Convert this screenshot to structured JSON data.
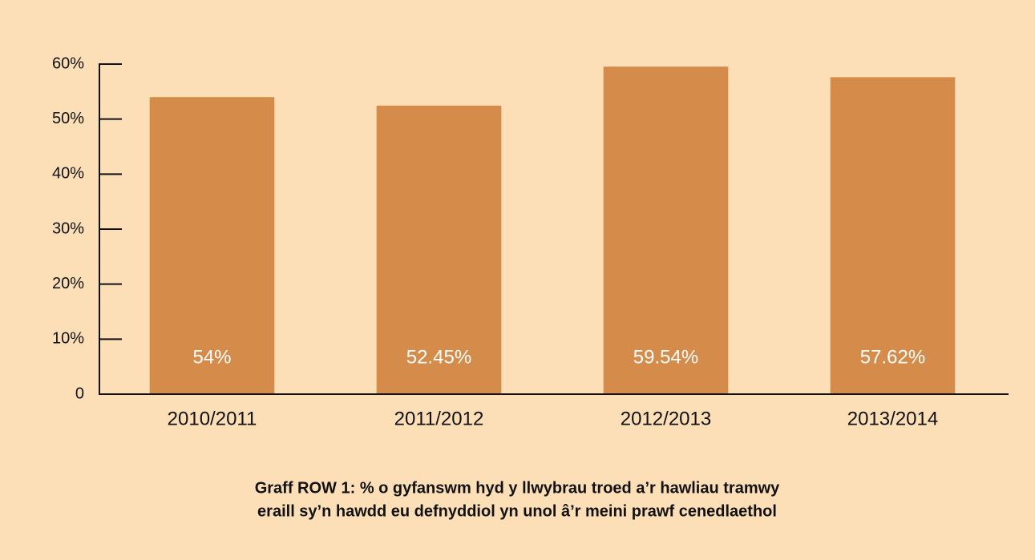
{
  "chart_data": {
    "type": "bar",
    "title": [
      "Graff ROW 1: % o gyfanswm hyd y llwybrau troed a’r hawliau tramwy",
      "eraill sy’n hawdd eu defnyddiol yn unol â’r meini prawf cenedlaethol"
    ],
    "categories": [
      "2010/2011",
      "2011/2012",
      "2012/2013",
      "2013/2014"
    ],
    "values": [
      54,
      52.45,
      59.54,
      57.62
    ],
    "value_labels": [
      "54%",
      "52.45%",
      "59.54%",
      "57.62%"
    ],
    "color": "#d58b49",
    "ylim": [
      0,
      60
    ],
    "yticks": [
      0,
      {
        "value": 10,
        "label": "10%"
      },
      {
        "value": 20,
        "label": "20%"
      },
      {
        "value": 30,
        "label": "30%"
      },
      {
        "value": 40,
        "label": "40%"
      },
      {
        "value": 50,
        "label": "50%"
      },
      {
        "value": 60,
        "label": "60%"
      }
    ],
    "grid": false
  }
}
